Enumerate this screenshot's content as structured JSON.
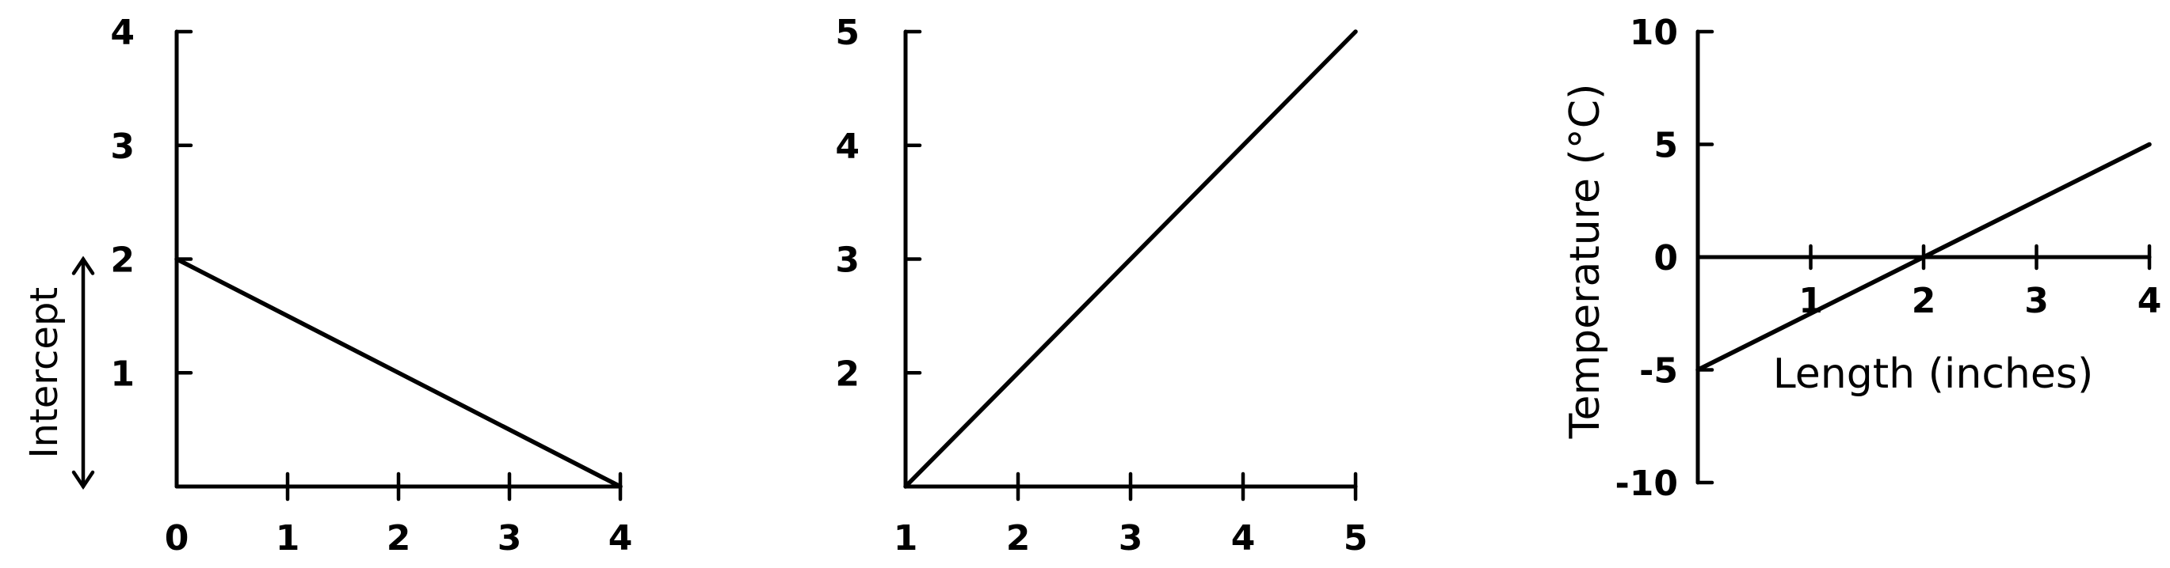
{
  "chart_data": [
    {
      "type": "line",
      "xlim": [
        0,
        4
      ],
      "ylim": [
        0,
        4
      ],
      "x_ticks": [
        0,
        1,
        2,
        3,
        4
      ],
      "y_ticks": [
        1,
        2,
        3,
        4
      ],
      "x_tick_labels": [
        "0",
        "1",
        "2",
        "3",
        "4"
      ],
      "y_tick_labels": [
        "1",
        "2",
        "3",
        "4"
      ],
      "series": [
        {
          "x": [
            0,
            4
          ],
          "y": [
            2,
            0
          ]
        }
      ],
      "annotations": [
        {
          "text": "Intercept",
          "from_y": 0,
          "to_y": 2
        }
      ]
    },
    {
      "type": "line",
      "xlim": [
        1,
        5
      ],
      "ylim": [
        1,
        5
      ],
      "x_ticks": [
        1,
        2,
        3,
        4,
        5
      ],
      "y_ticks": [
        2,
        3,
        4,
        5
      ],
      "x_tick_labels": [
        "1",
        "2",
        "3",
        "4",
        "5"
      ],
      "y_tick_labels": [
        "2",
        "3",
        "4",
        "5"
      ],
      "series": [
        {
          "x": [
            1,
            5
          ],
          "y": [
            1,
            5
          ]
        }
      ]
    },
    {
      "type": "line",
      "xlim": [
        0,
        4
      ],
      "ylim": [
        -10,
        10
      ],
      "x_ticks": [
        1,
        2,
        3,
        4
      ],
      "y_ticks": [
        -10,
        -5,
        0,
        5,
        10
      ],
      "x_tick_labels": [
        "1",
        "2",
        "3",
        "4"
      ],
      "y_tick_labels": [
        "-10",
        "-5",
        "0",
        "5",
        "10"
      ],
      "xlabel": "Length (inches)",
      "ylabel": "Temperature (°C)",
      "series": [
        {
          "x": [
            0,
            4
          ],
          "y": [
            -5,
            5
          ]
        }
      ]
    }
  ]
}
